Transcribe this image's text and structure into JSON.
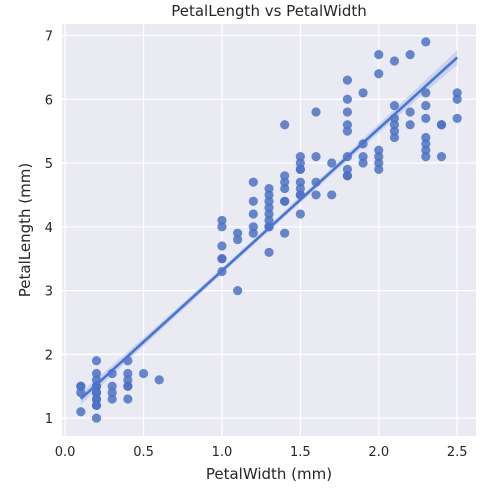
{
  "chart_data": {
    "type": "scatter",
    "title": "PetalLength vs PetalWidth",
    "xlabel": "PetalWidth (mm)",
    "ylabel": "PetalLength (mm)",
    "xlim": [
      -0.02,
      2.62
    ],
    "ylim": [
      0.72,
      7.18
    ],
    "xticks": [
      0.0,
      0.5,
      1.0,
      1.5,
      2.0,
      2.5
    ],
    "xtick_labels": [
      "0.0",
      "0.5",
      "1.0",
      "1.5",
      "2.0",
      "2.5"
    ],
    "yticks": [
      1,
      2,
      3,
      4,
      5,
      6,
      7
    ],
    "ytick_labels": [
      "1",
      "2",
      "3",
      "4",
      "5",
      "6",
      "7"
    ],
    "grid": true,
    "background": "#eaeaf2",
    "point_color": "#4c72c4",
    "line_color": "#4875d4",
    "band_color": "#aebfe8",
    "regression": {
      "slope": 2.23,
      "intercept": 1.08,
      "x_range": [
        0.1,
        2.5
      ]
    },
    "points": [
      [
        0.1,
        1.5
      ],
      [
        0.1,
        1.4
      ],
      [
        0.1,
        1.1
      ],
      [
        0.1,
        1.5
      ],
      [
        0.2,
        1.9
      ],
      [
        0.2,
        1.7
      ],
      [
        0.2,
        1.6
      ],
      [
        0.2,
        1.5
      ],
      [
        0.2,
        1.5
      ],
      [
        0.2,
        1.4
      ],
      [
        0.2,
        1.4
      ],
      [
        0.2,
        1.3
      ],
      [
        0.2,
        1.3
      ],
      [
        0.2,
        1.2
      ],
      [
        0.2,
        1.2
      ],
      [
        0.2,
        1.0
      ],
      [
        0.3,
        1.7
      ],
      [
        0.3,
        1.5
      ],
      [
        0.3,
        1.4
      ],
      [
        0.3,
        1.3
      ],
      [
        0.4,
        1.9
      ],
      [
        0.4,
        1.7
      ],
      [
        0.4,
        1.6
      ],
      [
        0.4,
        1.5
      ],
      [
        0.4,
        1.5
      ],
      [
        0.4,
        1.3
      ],
      [
        0.5,
        1.7
      ],
      [
        0.6,
        1.6
      ],
      [
        1.0,
        4.1
      ],
      [
        1.0,
        4.0
      ],
      [
        1.0,
        3.7
      ],
      [
        1.0,
        3.5
      ],
      [
        1.0,
        3.5
      ],
      [
        1.0,
        3.3
      ],
      [
        1.1,
        3.9
      ],
      [
        1.1,
        3.8
      ],
      [
        1.1,
        3.0
      ],
      [
        1.2,
        4.7
      ],
      [
        1.2,
        4.4
      ],
      [
        1.2,
        4.2
      ],
      [
        1.2,
        4.0
      ],
      [
        1.2,
        3.9
      ],
      [
        1.3,
        4.6
      ],
      [
        1.3,
        4.5
      ],
      [
        1.3,
        4.4
      ],
      [
        1.3,
        4.3
      ],
      [
        1.3,
        4.2
      ],
      [
        1.3,
        4.1
      ],
      [
        1.3,
        4.0
      ],
      [
        1.3,
        4.0
      ],
      [
        1.3,
        3.6
      ],
      [
        1.4,
        5.6
      ],
      [
        1.4,
        4.8
      ],
      [
        1.4,
        4.7
      ],
      [
        1.4,
        4.6
      ],
      [
        1.4,
        4.4
      ],
      [
        1.4,
        4.4
      ],
      [
        1.4,
        3.9
      ],
      [
        1.5,
        5.1
      ],
      [
        1.5,
        5.0
      ],
      [
        1.5,
        4.9
      ],
      [
        1.5,
        4.9
      ],
      [
        1.5,
        4.7
      ],
      [
        1.5,
        4.6
      ],
      [
        1.5,
        4.5
      ],
      [
        1.5,
        4.5
      ],
      [
        1.5,
        4.2
      ],
      [
        1.6,
        5.8
      ],
      [
        1.6,
        5.1
      ],
      [
        1.6,
        4.7
      ],
      [
        1.6,
        4.5
      ],
      [
        1.7,
        5.0
      ],
      [
        1.7,
        4.5
      ],
      [
        1.8,
        6.3
      ],
      [
        1.8,
        6.0
      ],
      [
        1.8,
        5.8
      ],
      [
        1.8,
        5.6
      ],
      [
        1.8,
        5.5
      ],
      [
        1.8,
        5.1
      ],
      [
        1.8,
        4.9
      ],
      [
        1.8,
        4.8
      ],
      [
        1.8,
        4.8
      ],
      [
        1.9,
        6.1
      ],
      [
        1.9,
        5.3
      ],
      [
        1.9,
        5.1
      ],
      [
        1.9,
        5.0
      ],
      [
        2.0,
        6.7
      ],
      [
        2.0,
        6.4
      ],
      [
        2.0,
        5.2
      ],
      [
        2.0,
        5.1
      ],
      [
        2.0,
        5.0
      ],
      [
        2.0,
        4.9
      ],
      [
        2.1,
        6.6
      ],
      [
        2.1,
        5.9
      ],
      [
        2.1,
        5.7
      ],
      [
        2.1,
        5.6
      ],
      [
        2.1,
        5.5
      ],
      [
        2.1,
        5.4
      ],
      [
        2.2,
        6.7
      ],
      [
        2.2,
        5.8
      ],
      [
        2.2,
        5.6
      ],
      [
        2.3,
        6.9
      ],
      [
        2.3,
        6.1
      ],
      [
        2.3,
        5.9
      ],
      [
        2.3,
        5.7
      ],
      [
        2.3,
        5.4
      ],
      [
        2.3,
        5.3
      ],
      [
        2.3,
        5.2
      ],
      [
        2.3,
        5.1
      ],
      [
        2.4,
        5.6
      ],
      [
        2.4,
        5.6
      ],
      [
        2.4,
        5.1
      ],
      [
        2.5,
        6.1
      ],
      [
        2.5,
        6.0
      ],
      [
        2.5,
        5.7
      ]
    ]
  }
}
